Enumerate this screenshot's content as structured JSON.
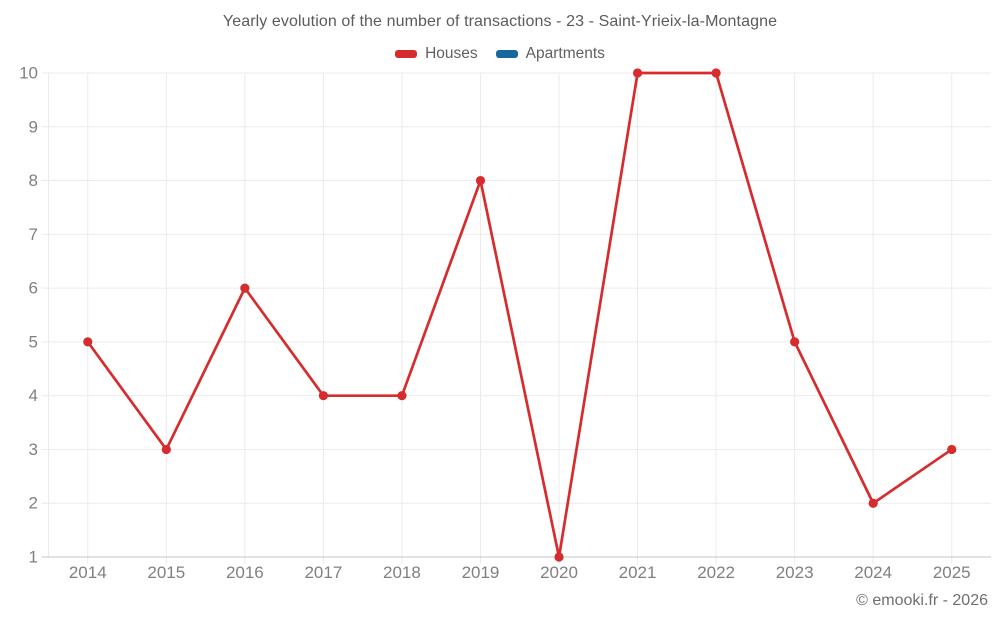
{
  "chart_data": {
    "type": "line",
    "title": "Yearly evolution of the number of transactions - 23 - Saint-Yrieix-la-Montagne",
    "categories": [
      "2014",
      "2015",
      "2016",
      "2017",
      "2018",
      "2019",
      "2020",
      "2021",
      "2022",
      "2023",
      "2024",
      "2025"
    ],
    "series": [
      {
        "name": "Houses",
        "color": "#d62c2d",
        "values": [
          5,
          3,
          6,
          4,
          4,
          8,
          1,
          10,
          10,
          5,
          2,
          3
        ]
      },
      {
        "name": "Apartments",
        "color": "#17699d",
        "values": []
      }
    ],
    "xlabel": "",
    "ylabel": "",
    "ylim": [
      1,
      10
    ],
    "yticks": [
      1,
      2,
      3,
      4,
      5,
      6,
      7,
      8,
      9,
      10
    ],
    "grid": true,
    "legend_position": "top"
  },
  "watermark": "© emooki.fr - 2026",
  "theme": {
    "background": "#ffffff",
    "grid_color": "#ebebeb",
    "axis_color": "#c6c6c6",
    "tick_label_color": "#808080",
    "title_color": "#5b5b5b",
    "legend_label_color": "#606060",
    "watermark_color": "#6f6f6f"
  }
}
